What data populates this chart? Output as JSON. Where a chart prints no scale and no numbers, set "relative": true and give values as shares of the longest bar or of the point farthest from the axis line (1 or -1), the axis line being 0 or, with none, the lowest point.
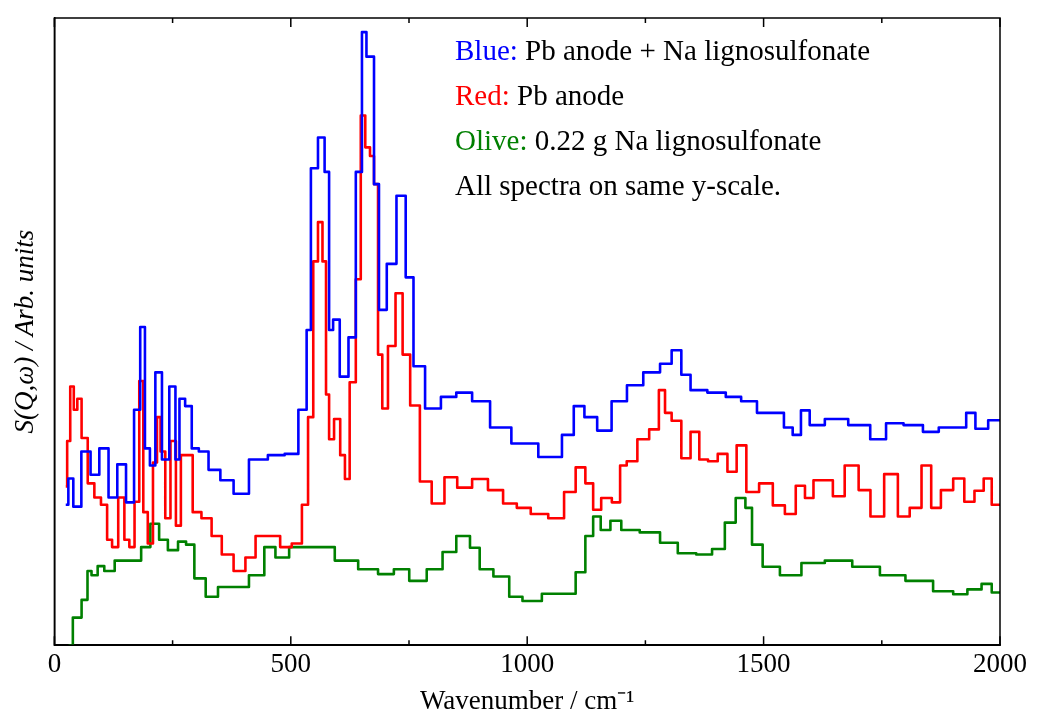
{
  "chart_data": {
    "type": "step",
    "xlabel": "Wavenumber / cm⁻¹",
    "ylabel": "S(Q,ω) / Arb. units",
    "relative": true,
    "xlim": [
      0,
      2000
    ],
    "xticks": [
      0,
      {
        "value": 250,
        "label": null
      },
      500,
      {
        "value": 750,
        "label": null
      },
      1000,
      {
        "value": 1250,
        "label": null
      },
      1500,
      {
        "value": 1750,
        "label": null
      },
      2000
    ],
    "grid": false,
    "legend": false,
    "annotations": [
      "Blue: Pb anode + Na lignosulfonate",
      "Red: Pb anode",
      "Olive: 0.22 g Na lignosulfonate",
      "All spectra on same y-scale."
    ],
    "series": [
      {
        "color": "#0000ff",
        "x": [
          24,
          35,
          45,
          69,
          84,
          106,
          123,
          143,
          160,
          177,
          186,
          197,
          207,
          220,
          235,
          251,
          261,
          268,
          285,
          296,
          315,
          337,
          365,
          393,
          430,
          473,
          501,
          531,
          536,
          549,
          566,
          577,
          585,
          594,
          613,
          631,
          644,
          657,
          663,
          672,
          680,
          693,
          713,
          734,
          752,
          767,
          801,
          834,
          866,
          901,
          942,
          991,
          1056,
          1091,
          1106,
          1136,
          1160,
          1197,
          1225,
          1266,
          1296,
          1315,
          1337,
          1354,
          1408,
          1432,
          1473,
          1499,
          1531,
          1555,
          1568,
          1590,
          1605,
          1654,
          1704,
          1747,
          1771,
          1821,
          1853,
          1888,
          1920,
          1937,
          1959,
          1991,
          2000
        ],
        "values": [
          0.229,
          0.272,
          0.226,
          0.316,
          0.278,
          0.321,
          0.241,
          0.295,
          0.233,
          0.384,
          0.519,
          0.321,
          0.293,
          0.445,
          0.303,
          0.422,
          0.303,
          0.402,
          0.39,
          0.321,
          0.316,
          0.286,
          0.269,
          0.247,
          0.303,
          0.31,
          0.312,
          0.384,
          0.514,
          0.778,
          0.828,
          0.772,
          0.514,
          0.531,
          0.438,
          0.502,
          0.772,
          1,
          0.96,
          0.96,
          0.752,
          0.547,
          0.622,
          0.733,
          0.6,
          0.455,
          0.386,
          0.405,
          0.412,
          0.398,
          0.355,
          0.329,
          0.307,
          0.343,
          0.39,
          0.372,
          0.35,
          0.398,
          0.424,
          0.445,
          0.459,
          0.481,
          0.441,
          0.416,
          0.412,
          0.405,
          0.398,
          0.379,
          0.379,
          0.355,
          0.343,
          0.383,
          0.359,
          0.369,
          0.359,
          0.336,
          0.362,
          0.359,
          0.348,
          0.355,
          0.355,
          0.379,
          0.353,
          0.367,
          0.367
        ]
      },
      {
        "color": "#ff0000",
        "x": [
          24,
          30,
          37,
          45,
          52,
          63,
          78,
          91,
          106,
          117,
          127,
          143,
          153,
          164,
          175,
          184,
          192,
          203,
          214,
          220,
          229,
          240,
          251,
          263,
          272,
          285,
          300,
          322,
          343,
          365,
          393,
          415,
          436,
          467,
          488,
          516,
          531,
          542,
          553,
          562,
          572,
          577,
          585,
          598,
          611,
          618,
          631,
          644,
          652,
          663,
          672,
          680,
          689,
          698,
          713,
          730,
          743,
          762,
          784,
          812,
          838,
          866,
          901,
          933,
          965,
          991,
          1024,
          1065,
          1091,
          1114,
          1132,
          1147,
          1166,
          1192,
          1201,
          1220,
          1246,
          1270,
          1287,
          1296,
          1315,
          1337,
          1354,
          1374,
          1391,
          1415,
          1432,
          1454,
          1473,
          1508,
          1531,
          1559,
          1577,
          1598,
          1613,
          1639,
          1654,
          1689,
          1713,
          1739,
          1771,
          1797,
          1821,
          1847,
          1862,
          1888,
          1914,
          1935,
          1957,
          1974,
          1991,
          2000
        ],
        "values": [
          0.259,
          0.333,
          0.422,
          0.384,
          0.402,
          0.338,
          0.264,
          0.241,
          0.229,
          0.172,
          0.16,
          0.241,
          0.172,
          0.16,
          0.234,
          0.431,
          0.217,
          0.166,
          0.298,
          0.372,
          0.316,
          0.207,
          0.333,
          0.195,
          0.31,
          0.31,
          0.217,
          0.207,
          0.178,
          0.148,
          0.121,
          0.143,
          0.178,
          0.178,
          0.16,
          0.166,
          0.229,
          0.372,
          0.626,
          0.69,
          0.626,
          0.409,
          0.336,
          0.369,
          0.31,
          0.271,
          0.429,
          0.597,
          0.864,
          0.812,
          0.798,
          0.752,
          0.474,
          0.386,
          0.488,
          0.574,
          0.474,
          0.391,
          0.267,
          0.231,
          0.274,
          0.257,
          0.271,
          0.253,
          0.231,
          0.224,
          0.214,
          0.207,
          0.25,
          0.29,
          0.264,
          0.221,
          0.24,
          0.233,
          0.293,
          0.3,
          0.336,
          0.352,
          0.416,
          0.379,
          0.366,
          0.305,
          0.348,
          0.303,
          0.3,
          0.312,
          0.283,
          0.326,
          0.25,
          0.264,
          0.228,
          0.214,
          0.26,
          0.24,
          0.269,
          0.269,
          0.243,
          0.293,
          0.253,
          0.21,
          0.279,
          0.21,
          0.224,
          0.293,
          0.224,
          0.253,
          0.272,
          0.234,
          0.252,
          0.272,
          0.229,
          0.229
        ]
      },
      {
        "color": "#008000",
        "x": [
          30,
          48,
          67,
          73,
          84,
          99,
          112,
          143,
          175,
          192,
          214,
          229,
          251,
          272,
          285,
          307,
          333,
          359,
          393,
          430,
          458,
          477,
          516,
          568,
          618,
          667,
          702,
          734,
          767,
          808,
          834,
          866,
          892,
          907,
          950,
          974,
          1006,
          1056,
          1091,
          1114,
          1132,
          1147,
          1164,
          1188,
          1210,
          1266,
          1296,
          1341,
          1374,
          1408,
          1428,
          1454,
          1469,
          1482,
          1514,
          1555,
          1605,
          1654,
          1721,
          1771,
          1829,
          1888,
          1914,
          1948,
          1974,
          1991,
          2000
        ],
        "values": [
          0,
          0.045,
          0.074,
          0.121,
          0.114,
          0.129,
          0.121,
          0.138,
          0.138,
          0.16,
          0.198,
          0.172,
          0.155,
          0.169,
          0.164,
          0.109,
          0.079,
          0.095,
          0.095,
          0.114,
          0.16,
          0.143,
          0.16,
          0.16,
          0.138,
          0.124,
          0.116,
          0.124,
          0.105,
          0.124,
          0.152,
          0.178,
          0.159,
          0.124,
          0.112,
          0.079,
          0.072,
          0.084,
          0.084,
          0.119,
          0.178,
          0.21,
          0.188,
          0.203,
          0.188,
          0.184,
          0.167,
          0.15,
          0.148,
          0.157,
          0.2,
          0.24,
          0.224,
          0.164,
          0.128,
          0.114,
          0.134,
          0.138,
          0.128,
          0.114,
          0.105,
          0.088,
          0.083,
          0.091,
          0.1,
          0.086,
          0.086
        ]
      }
    ]
  }
}
